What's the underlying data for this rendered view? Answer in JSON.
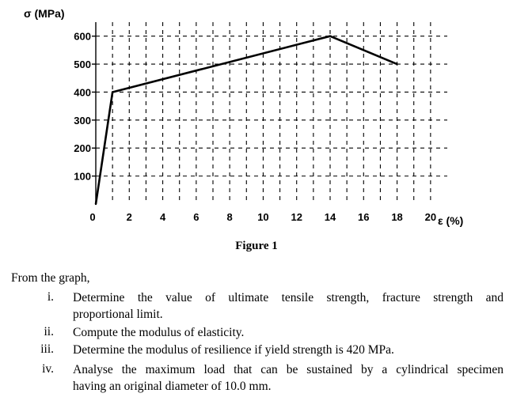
{
  "chart_data": {
    "type": "line",
    "ylabel": "σ (MPa)",
    "xlabel": "ε (%)",
    "xlim": [
      0,
      21
    ],
    "ylim": [
      0,
      650
    ],
    "x_ticks": [
      0,
      2,
      4,
      6,
      8,
      10,
      12,
      14,
      16,
      18,
      20
    ],
    "y_ticks": [
      100,
      200,
      300,
      400,
      500,
      600
    ],
    "grid": "dashed",
    "series": [
      {
        "x": [
          0,
          1,
          14,
          18
        ],
        "y": [
          0,
          400,
          600,
          500
        ]
      }
    ]
  },
  "figure_caption": "Figure 1",
  "questions": {
    "intro": "From the graph,",
    "items": [
      {
        "num": "i.",
        "line1": "Determine the value of ultimate tensile strength, fracture strength and",
        "line2": "proportional limit."
      },
      {
        "num": "ii.",
        "line1": "Compute the modulus of elasticity."
      },
      {
        "num": "iii.",
        "line1": "Determine the modulus of resilience if yield strength is 420 MPa."
      },
      {
        "num": "iv.",
        "line1": "Analyse the maximum load that can be sustained by a cylindrical specimen",
        "line2": "having an original diameter of 10.0 mm."
      }
    ]
  }
}
